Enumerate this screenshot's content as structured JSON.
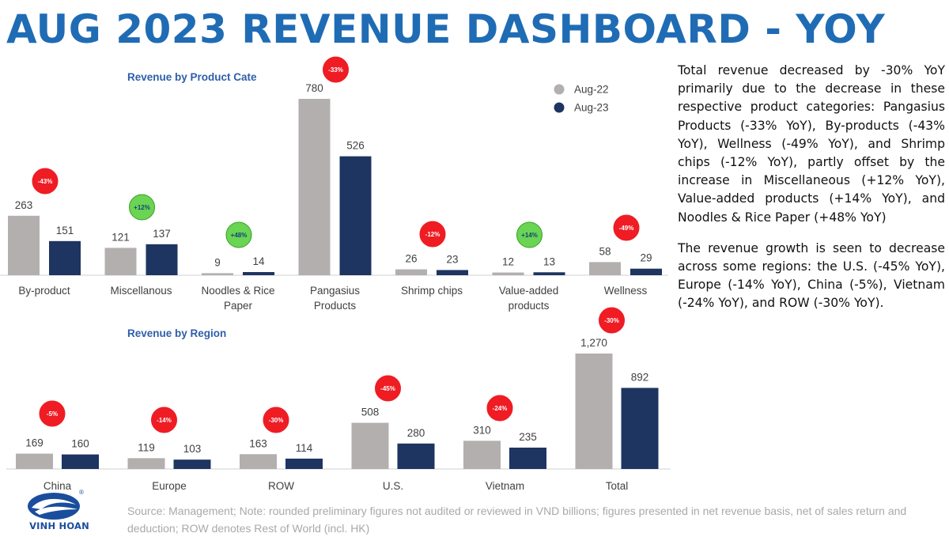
{
  "title": "AUG 2023 REVENUE DASHBOARD - YOY",
  "colors": {
    "title": "#1f6cb5",
    "aug22": "#b3afaf",
    "aug23": "#1e3461",
    "neg_badge": "#ef1c24",
    "pos_badge": "#6ad453",
    "chart_title": "#2e5fa8"
  },
  "commentary": {
    "paragraph1": "Total revenue decreased by -30% YoY primarily due to the decrease in these respective product categories: Pangasius Products (-33% YoY), By-products (-43% YoY), Wellness (-49% YoY), and Shrimp chips (-12% YoY), partly offset by the increase in Miscellaneous (+12% YoY), Value-added products (+14% YoY), and Noodles & Rice Paper (+48% YoY)",
    "paragraph2": "The revenue growth is seen to decrease across some regions: the U.S. (-45% YoY), Europe (-14% YoY), China (-5%), Vietnam (-24% YoY), and ROW (-30% YoY)."
  },
  "footnote": "Source: Management; Note: rounded preliminary figures not audited or reviewed in VND billions; figures presented in net revenue basis, net of sales return and deduction; ROW denotes Rest of World (incl. HK)",
  "logo": {
    "text": "VINH HOAN",
    "mark": "®"
  },
  "chart_data": [
    {
      "type": "bar",
      "title": "Revenue by Product Cate",
      "categories": [
        "By-product",
        "Miscellanous",
        "Noodles & Rice Paper",
        "Pangasius Products",
        "Shrimp chips",
        "Value-added products",
        "Wellness"
      ],
      "series": [
        {
          "name": "Aug-22",
          "values": [
            263,
            121,
            9,
            780,
            26,
            12,
            58
          ],
          "labels": [
            "263",
            "121",
            "9",
            "780",
            "26",
            "12",
            "58"
          ]
        },
        {
          "name": "Aug-23",
          "values": [
            151,
            137,
            14,
            526,
            23,
            13,
            29
          ],
          "labels": [
            "151",
            "137",
            "14",
            "526",
            "23",
            "13",
            "29"
          ]
        }
      ],
      "badges": [
        "-43%",
        "+12%",
        "+48%",
        "-33%",
        "-12%",
        "+14%",
        "-49%"
      ],
      "legend": "top-right",
      "ylim": [
        0,
        800
      ]
    },
    {
      "type": "bar",
      "title": "Revenue by Region",
      "categories": [
        "China",
        "Europe",
        "ROW",
        "U.S.",
        "Vietnam",
        "Total"
      ],
      "series": [
        {
          "name": "Aug-22",
          "values": [
            169,
            119,
            163,
            508,
            310,
            1270
          ],
          "labels": [
            "169",
            "119",
            "163",
            "508",
            "310",
            "1,270"
          ]
        },
        {
          "name": "Aug-23",
          "values": [
            160,
            103,
            114,
            280,
            235,
            892
          ],
          "labels": [
            "160",
            "103",
            "114",
            "280",
            "235",
            "892"
          ]
        }
      ],
      "badges": [
        "-5%",
        "-14%",
        "-30%",
        "-45%",
        "-24%",
        "-30%"
      ],
      "legend": "none",
      "ylim": [
        0,
        1300
      ]
    }
  ]
}
